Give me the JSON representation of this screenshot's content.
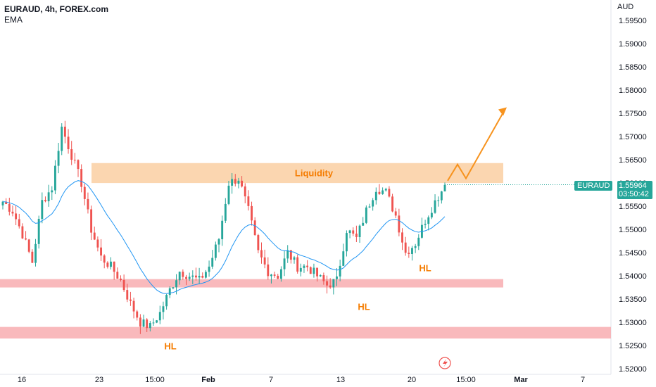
{
  "header": {
    "symbol": "EURAUD, 4h, FOREX.com",
    "indicator": "EMA"
  },
  "price_axis": {
    "currency": "AUD",
    "ticks": [
      "1.59500",
      "1.59000",
      "1.58500",
      "1.58000",
      "1.57500",
      "1.57000",
      "1.56500",
      "1.56000",
      "1.55500",
      "1.55000",
      "1.54500",
      "1.54000",
      "1.53500",
      "1.53000",
      "1.52500",
      "1.52000"
    ],
    "tick_values": [
      1.595,
      1.59,
      1.585,
      1.58,
      1.575,
      1.57,
      1.565,
      1.56,
      1.555,
      1.55,
      1.545,
      1.54,
      1.535,
      1.53,
      1.525,
      1.52
    ]
  },
  "time_axis": {
    "labels": [
      "16",
      "23",
      "15:00",
      "Feb",
      "7",
      "13",
      "20",
      "15:00",
      "Mar",
      "7"
    ]
  },
  "last_price": {
    "symbol_label": "EURAUD",
    "price": "1.55964",
    "countdown": "03:50:42"
  },
  "annotations": {
    "liquidity_label": "Liquidity",
    "hl_labels": [
      "HL",
      "HL",
      "HL"
    ]
  },
  "colors": {
    "up": "#26a69a",
    "down": "#ef5350",
    "ema": "#2196f3",
    "liquidity_zone": "#f9c896",
    "liquidity_text": "#f57c00",
    "support_zone": "#f7a1a5",
    "projection": "#f7931e",
    "hl_text": "#f57c00"
  },
  "chart_data": {
    "type": "candlestick",
    "symbol": "EURAUD",
    "timeframe": "4h",
    "ylim": [
      1.52,
      1.597
    ],
    "zones": [
      {
        "name": "Liquidity",
        "from": 1.56,
        "to": 1.5643
      },
      {
        "name": "support-upper",
        "from": 1.5375,
        "to": 1.5393
      },
      {
        "name": "support-lower",
        "from": 1.5265,
        "to": 1.529
      }
    ],
    "swing_closes": [
      1.556,
      1.554,
      1.549,
      1.543,
      1.556,
      1.559,
      1.572,
      1.566,
      1.56,
      1.55,
      1.544,
      1.542,
      1.539,
      1.534,
      1.53,
      1.529,
      1.532,
      1.537,
      1.541,
      1.54,
      1.539,
      1.542,
      1.548,
      1.56,
      1.561,
      1.554,
      1.545,
      1.541,
      1.54,
      1.545,
      1.542,
      1.542,
      1.54,
      1.538,
      1.539,
      1.55,
      1.548,
      1.554,
      1.559,
      1.558,
      1.553,
      1.545,
      1.547,
      1.552,
      1.556,
      1.5596
    ],
    "projection": [
      1.5605,
      1.564,
      1.561,
      1.576
    ]
  }
}
